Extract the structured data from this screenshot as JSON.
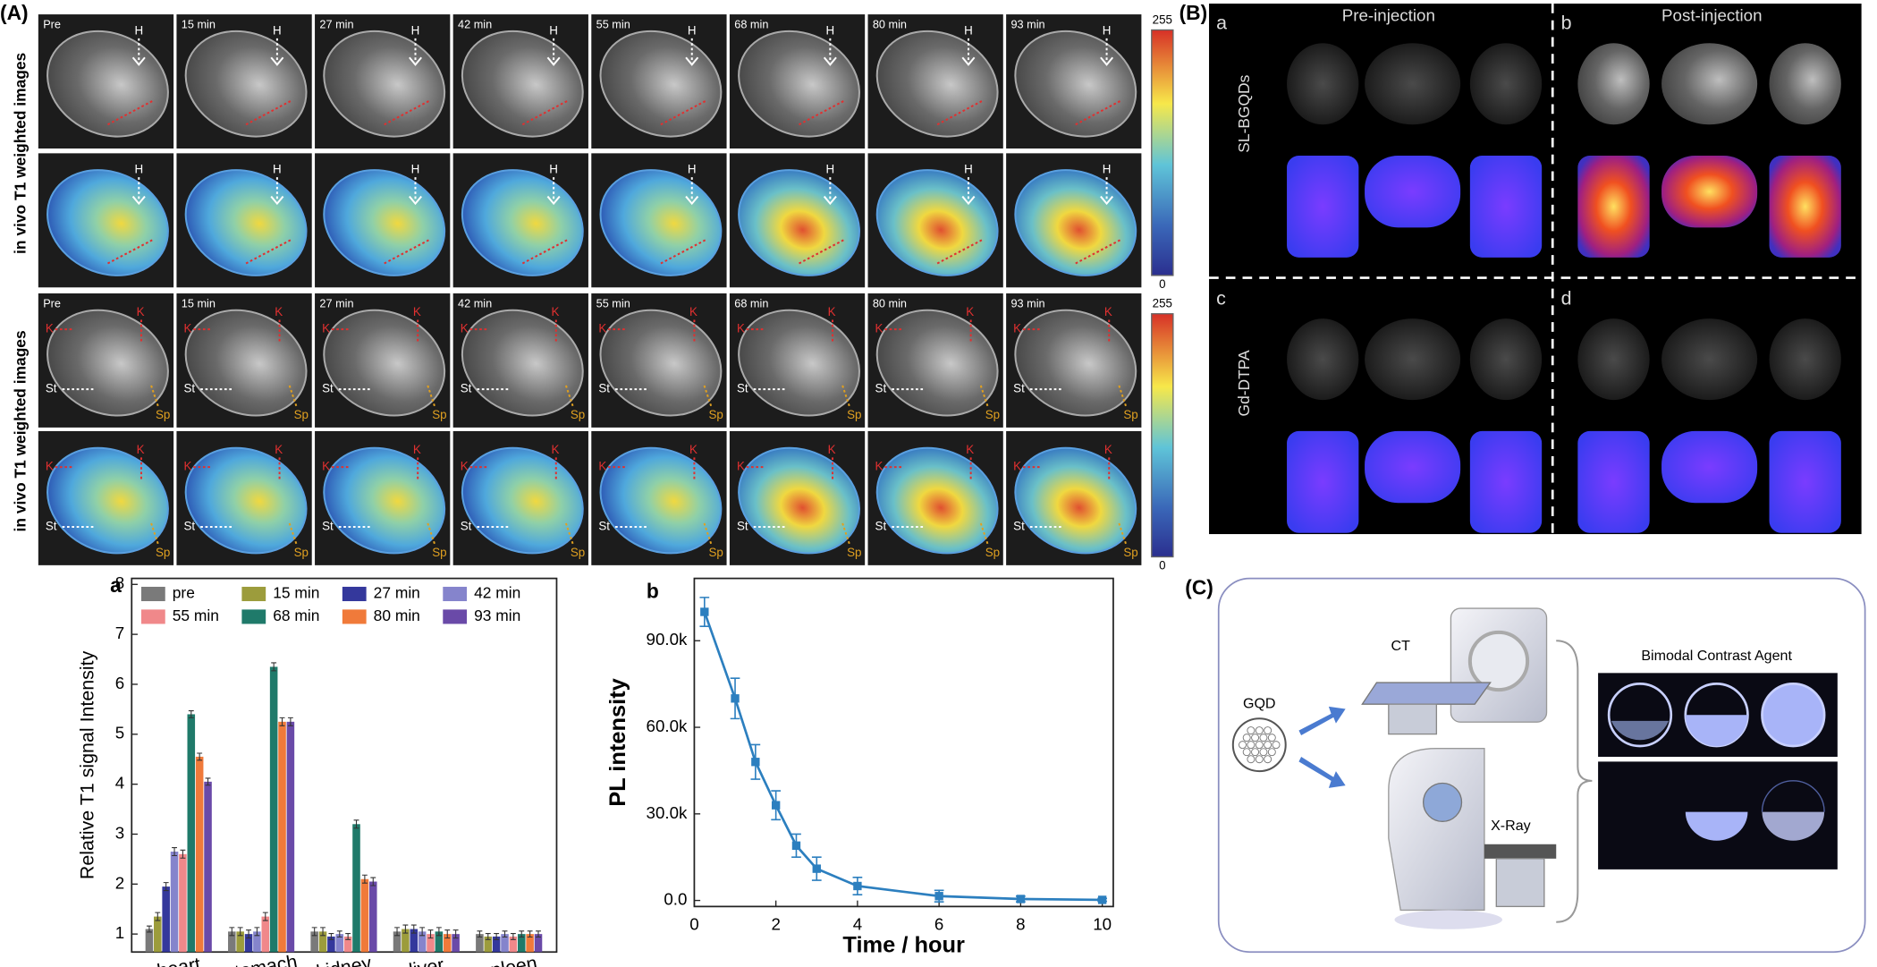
{
  "panel_A": {
    "label": "(A)",
    "time_labels": [
      "Pre",
      "15 min",
      "27 min",
      "42 min",
      "55 min",
      "68 min",
      "80 min",
      "93 min"
    ],
    "row_label": "in vivo T1 weighted images",
    "markers": [
      "H",
      "K",
      "St",
      "Sp"
    ],
    "colorbar_labels": [
      "255",
      "0"
    ]
  },
  "chart_data": [
    {
      "type": "bar",
      "label": "a",
      "y_label": "Relative T1 signal Intensity",
      "categories": [
        "heart",
        "stomach",
        "kidney",
        "liver",
        "spleen"
      ],
      "series": [
        {
          "name": "pre",
          "color": "#7a7a7a",
          "values": [
            1.1,
            1.05,
            1.05,
            1.05,
            1.0
          ],
          "errors": [
            0.06,
            0.08,
            0.08,
            0.08,
            0.06
          ]
        },
        {
          "name": "15 min",
          "color": "#9c9c3c",
          "values": [
            1.35,
            1.05,
            1.05,
            1.1,
            0.95
          ],
          "errors": [
            0.08,
            0.08,
            0.08,
            0.08,
            0.06
          ]
        },
        {
          "name": "27 min",
          "color": "#34389c",
          "values": [
            1.95,
            1.0,
            0.95,
            1.1,
            0.95
          ],
          "errors": [
            0.08,
            0.08,
            0.06,
            0.08,
            0.06
          ]
        },
        {
          "name": "42 min",
          "color": "#8584cc",
          "values": [
            2.65,
            1.05,
            1.0,
            1.05,
            1.0
          ],
          "errors": [
            0.08,
            0.08,
            0.06,
            0.08,
            0.06
          ]
        },
        {
          "name": "55 min",
          "color": "#f0888a",
          "values": [
            2.6,
            1.35,
            0.95,
            1.0,
            0.95
          ],
          "errors": [
            0.08,
            0.08,
            0.06,
            0.08,
            0.06
          ]
        },
        {
          "name": "68 min",
          "color": "#1f7a6a",
          "values": [
            5.4,
            6.35,
            3.2,
            1.05,
            1.0
          ],
          "errors": [
            0.07,
            0.08,
            0.08,
            0.08,
            0.06
          ]
        },
        {
          "name": "80 min",
          "color": "#f07a3a",
          "values": [
            4.55,
            5.25,
            2.1,
            1.0,
            1.0
          ],
          "errors": [
            0.07,
            0.08,
            0.08,
            0.08,
            0.06
          ]
        },
        {
          "name": "93 min",
          "color": "#6a4aa8",
          "values": [
            4.05,
            5.25,
            2.05,
            1.0,
            1.0
          ],
          "errors": [
            0.07,
            0.08,
            0.08,
            0.08,
            0.06
          ]
        }
      ],
      "ylim": [
        0.64,
        8.12
      ],
      "yticks": [
        1,
        2,
        3,
        4,
        5,
        6,
        7,
        8
      ]
    },
    {
      "type": "line",
      "label": "b",
      "x_label": "Time / hour",
      "y_label": "PL intensity",
      "color": "#2c7fbf",
      "x": [
        0.25,
        1,
        1.5,
        2,
        2.5,
        3,
        4,
        6,
        8,
        10
      ],
      "values": [
        100000,
        70000,
        48000,
        33000,
        19000,
        11000,
        5000,
        1500,
        500,
        200
      ],
      "errors": [
        5000,
        7000,
        6000,
        5000,
        4000,
        4000,
        3000,
        2000,
        1000,
        500
      ],
      "xlim": [
        0,
        10.27
      ],
      "xticks": [
        0,
        2,
        4,
        6,
        8,
        10
      ],
      "ylim": [
        -2100,
        111600
      ],
      "yticks": [
        {
          "value": 0,
          "label": "0.0"
        },
        {
          "value": 30000,
          "label": "30.0k"
        },
        {
          "value": 60000,
          "label": "60.0k"
        },
        {
          "value": 90000,
          "label": "90.0k"
        }
      ]
    }
  ],
  "panel_B": {
    "label": "(B)",
    "sub_labels": [
      "a",
      "b",
      "c",
      "d"
    ],
    "columns": [
      "Pre-injection",
      "Post-injection"
    ],
    "rows": [
      "SL-BGQDs",
      "Gd-DTPA"
    ]
  },
  "panel_C": {
    "label": "(C)",
    "agent": "GQD",
    "modalities": [
      "CT",
      "X-Ray"
    ],
    "title": "Bimodal Contrast Agent"
  }
}
